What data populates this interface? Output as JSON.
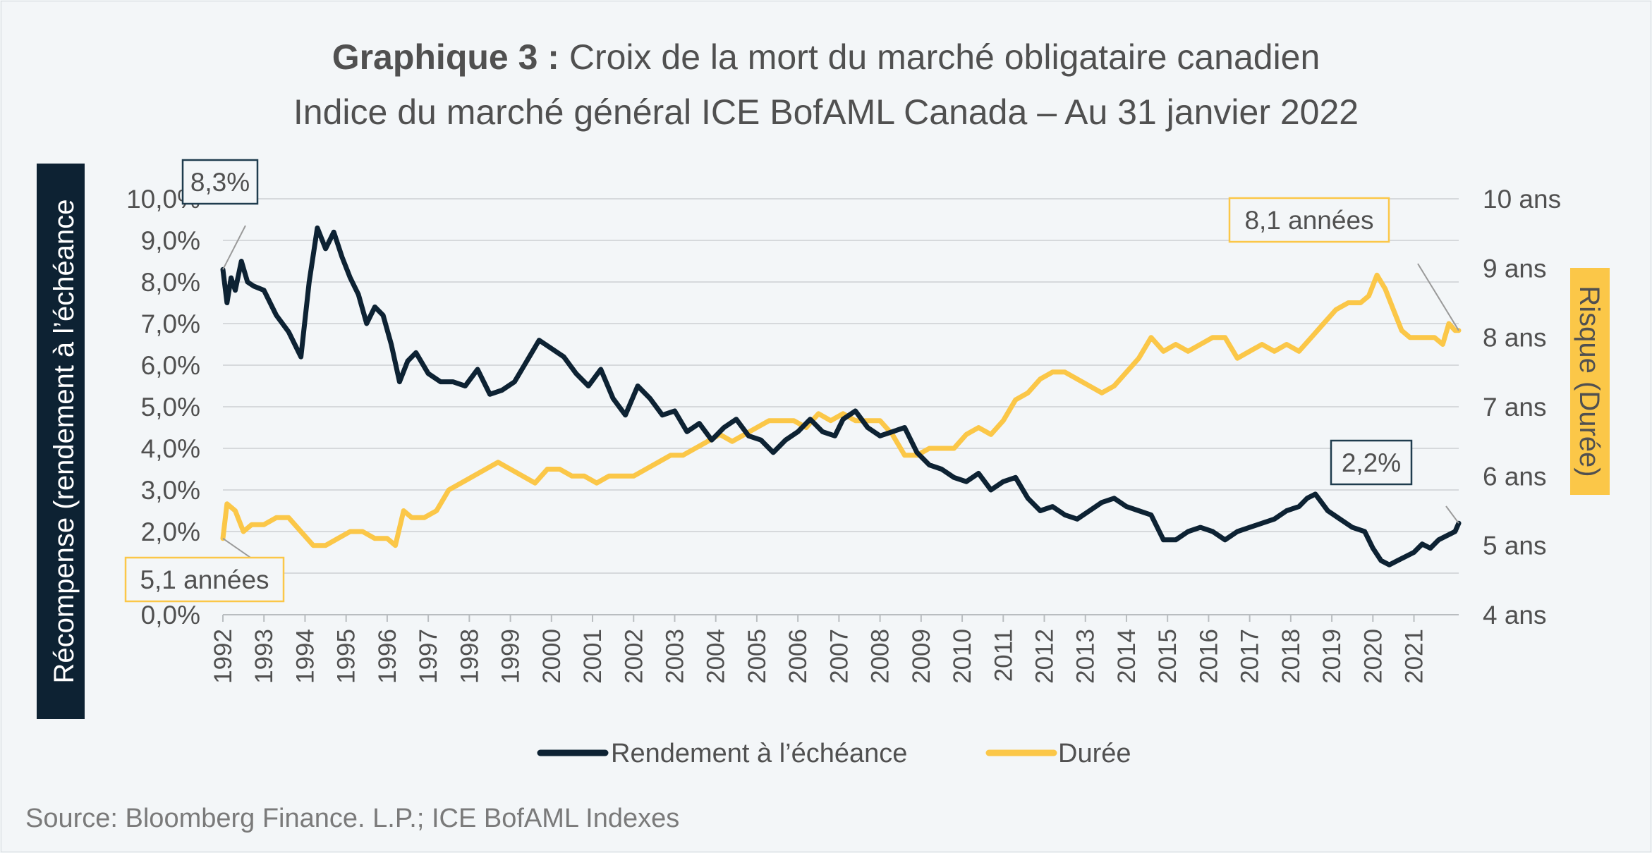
{
  "title": {
    "bold": "Graphique 3 :",
    "rest": " Croix de la mort du marché obligataire canadien",
    "subtitle": "Indice du marché général ICE BofAML Canada – Au 31 janvier 2022"
  },
  "source": "Source: Bloomberg Finance. L.P.; ICE BofAML Indexes",
  "colors": {
    "yield": "#0d2233",
    "duration": "#fbc748",
    "grid": "#d6d9dc",
    "text": "#505050",
    "background": "#f3f6f8"
  },
  "chart_data": {
    "type": "line",
    "ylabel_left": "Récompense (rendement à l’échéance",
    "ylabel_right": "Risque (Durée)",
    "ylim_left": [
      0,
      10
    ],
    "ylim_right": [
      4,
      10
    ],
    "left_ticks": [
      "0,0%",
      "1,0%",
      "2,0%",
      "3,0%",
      "4,0%",
      "5,0%",
      "6,0%",
      "7,0%",
      "8,0%",
      "9,0%",
      "10,0%"
    ],
    "right_ticks": [
      "4 ans",
      "5 ans",
      "6 ans",
      "7 ans",
      "8 ans",
      "9 ans",
      "10 ans"
    ],
    "x_ticks": [
      "1992",
      "1993",
      "1994",
      "1995",
      "1996",
      "1997",
      "1998",
      "1999",
      "2000",
      "2001",
      "2002",
      "2003",
      "2004",
      "2005",
      "2006",
      "2007",
      "2008",
      "2009",
      "2010",
      "2011",
      "2012",
      "2013",
      "2014",
      "2015",
      "2016",
      "2017",
      "2018",
      "2019",
      "2020",
      "2021"
    ],
    "xlim": [
      1992.0,
      2022.09
    ],
    "grid": true,
    "legend_position": "bottom",
    "series": [
      {
        "name": "Rendement à l’échéance",
        "axis": "left",
        "x": [
          1992.0,
          1992.1,
          1992.2,
          1992.3,
          1992.45,
          1992.6,
          1992.75,
          1993.0,
          1993.3,
          1993.6,
          1993.9,
          1994.1,
          1994.3,
          1994.5,
          1994.7,
          1994.9,
          1995.1,
          1995.3,
          1995.5,
          1995.7,
          1995.9,
          1996.1,
          1996.3,
          1996.5,
          1996.7,
          1997.0,
          1997.3,
          1997.6,
          1997.9,
          1998.2,
          1998.5,
          1998.8,
          1999.1,
          1999.4,
          1999.7,
          2000.0,
          2000.3,
          2000.6,
          2000.9,
          2001.2,
          2001.5,
          2001.8,
          2002.1,
          2002.4,
          2002.7,
          2003.0,
          2003.3,
          2003.6,
          2003.9,
          2004.2,
          2004.5,
          2004.8,
          2005.1,
          2005.4,
          2005.7,
          2006.0,
          2006.3,
          2006.6,
          2006.9,
          2007.1,
          2007.4,
          2007.7,
          2008.0,
          2008.3,
          2008.6,
          2008.9,
          2009.2,
          2009.5,
          2009.8,
          2010.1,
          2010.4,
          2010.7,
          2011.0,
          2011.3,
          2011.6,
          2011.9,
          2012.2,
          2012.5,
          2012.8,
          2013.1,
          2013.4,
          2013.7,
          2014.0,
          2014.3,
          2014.6,
          2014.9,
          2015.2,
          2015.5,
          2015.8,
          2016.1,
          2016.4,
          2016.7,
          2017.0,
          2017.3,
          2017.6,
          2017.9,
          2018.2,
          2018.4,
          2018.6,
          2018.9,
          2019.2,
          2019.5,
          2019.8,
          2020.0,
          2020.2,
          2020.4,
          2020.6,
          2020.8,
          2021.0,
          2021.2,
          2021.4,
          2021.6,
          2021.8,
          2022.0,
          2022.09
        ],
        "values": [
          8.3,
          7.5,
          8.1,
          7.8,
          8.5,
          8.0,
          7.9,
          7.8,
          7.2,
          6.8,
          6.2,
          8.0,
          9.3,
          8.8,
          9.2,
          8.6,
          8.1,
          7.7,
          7.0,
          7.4,
          7.2,
          6.5,
          5.6,
          6.1,
          6.3,
          5.8,
          5.6,
          5.6,
          5.5,
          5.9,
          5.3,
          5.4,
          5.6,
          6.1,
          6.6,
          6.4,
          6.2,
          5.8,
          5.5,
          5.9,
          5.2,
          4.8,
          5.5,
          5.2,
          4.8,
          4.9,
          4.4,
          4.6,
          4.2,
          4.5,
          4.7,
          4.3,
          4.2,
          3.9,
          4.2,
          4.4,
          4.7,
          4.4,
          4.3,
          4.7,
          4.9,
          4.5,
          4.3,
          4.4,
          4.5,
          3.9,
          3.6,
          3.5,
          3.3,
          3.2,
          3.4,
          3.0,
          3.2,
          3.3,
          2.8,
          2.5,
          2.6,
          2.4,
          2.3,
          2.5,
          2.7,
          2.8,
          2.6,
          2.5,
          2.4,
          1.8,
          1.8,
          2.0,
          2.1,
          2.0,
          1.8,
          2.0,
          2.1,
          2.2,
          2.3,
          2.5,
          2.6,
          2.8,
          2.9,
          2.5,
          2.3,
          2.1,
          2.0,
          1.6,
          1.3,
          1.2,
          1.3,
          1.4,
          1.5,
          1.7,
          1.6,
          1.8,
          1.9,
          2.0,
          2.2
        ]
      },
      {
        "name": "Durée",
        "axis": "right",
        "x": [
          1992.0,
          1992.1,
          1992.3,
          1992.5,
          1992.7,
          1993.0,
          1993.3,
          1993.6,
          1993.9,
          1994.2,
          1994.5,
          1994.8,
          1995.1,
          1995.4,
          1995.7,
          1996.0,
          1996.2,
          1996.4,
          1996.6,
          1996.9,
          1997.2,
          1997.5,
          1997.8,
          1998.1,
          1998.4,
          1998.7,
          1999.0,
          1999.3,
          1999.6,
          1999.9,
          2000.2,
          2000.5,
          2000.8,
          2001.1,
          2001.4,
          2001.7,
          2002.0,
          2002.3,
          2002.6,
          2002.9,
          2003.2,
          2003.5,
          2003.8,
          2004.1,
          2004.4,
          2004.7,
          2005.0,
          2005.3,
          2005.6,
          2005.9,
          2006.2,
          2006.5,
          2006.8,
          2007.1,
          2007.4,
          2007.7,
          2008.0,
          2008.3,
          2008.6,
          2008.9,
          2009.2,
          2009.5,
          2009.8,
          2010.1,
          2010.4,
          2010.7,
          2011.0,
          2011.3,
          2011.6,
          2011.9,
          2012.2,
          2012.5,
          2012.8,
          2013.1,
          2013.4,
          2013.7,
          2014.0,
          2014.3,
          2014.6,
          2014.9,
          2015.2,
          2015.5,
          2015.8,
          2016.1,
          2016.4,
          2016.7,
          2017.0,
          2017.3,
          2017.6,
          2017.9,
          2018.2,
          2018.5,
          2018.8,
          2019.1,
          2019.4,
          2019.7,
          2019.9,
          2020.1,
          2020.3,
          2020.5,
          2020.7,
          2020.9,
          2021.1,
          2021.3,
          2021.5,
          2021.7,
          2021.85,
          2022.0,
          2022.09
        ],
        "values": [
          5.1,
          5.6,
          5.5,
          5.2,
          5.3,
          5.3,
          5.4,
          5.4,
          5.2,
          5.0,
          5.0,
          5.1,
          5.2,
          5.2,
          5.1,
          5.1,
          5.0,
          5.5,
          5.4,
          5.4,
          5.5,
          5.8,
          5.9,
          6.0,
          6.1,
          6.2,
          6.1,
          6.0,
          5.9,
          6.1,
          6.1,
          6.0,
          6.0,
          5.9,
          6.0,
          6.0,
          6.0,
          6.1,
          6.2,
          6.3,
          6.3,
          6.4,
          6.5,
          6.6,
          6.5,
          6.6,
          6.7,
          6.8,
          6.8,
          6.8,
          6.7,
          6.9,
          6.8,
          6.9,
          6.8,
          6.8,
          6.8,
          6.6,
          6.3,
          6.3,
          6.4,
          6.4,
          6.4,
          6.6,
          6.7,
          6.6,
          6.8,
          7.1,
          7.2,
          7.4,
          7.5,
          7.5,
          7.4,
          7.3,
          7.2,
          7.3,
          7.5,
          7.7,
          8.0,
          7.8,
          7.9,
          7.8,
          7.9,
          8.0,
          8.0,
          7.7,
          7.8,
          7.9,
          7.8,
          7.9,
          7.8,
          8.0,
          8.2,
          8.4,
          8.5,
          8.5,
          8.6,
          8.9,
          8.7,
          8.4,
          8.1,
          8.0,
          8.0,
          8.0,
          8.0,
          7.9,
          8.2,
          8.1,
          8.1
        ]
      }
    ],
    "annotations": [
      {
        "text": "8,3%",
        "series": 0,
        "x": 1992.0,
        "y": 8.3
      },
      {
        "text": "5,1 années",
        "series": 1,
        "x": 1992.0,
        "y": 5.1
      },
      {
        "text": "8,1 années",
        "series": 1,
        "x": 2022.09,
        "y": 8.1
      },
      {
        "text": "2,2%",
        "series": 0,
        "x": 2022.09,
        "y": 2.2
      }
    ]
  }
}
